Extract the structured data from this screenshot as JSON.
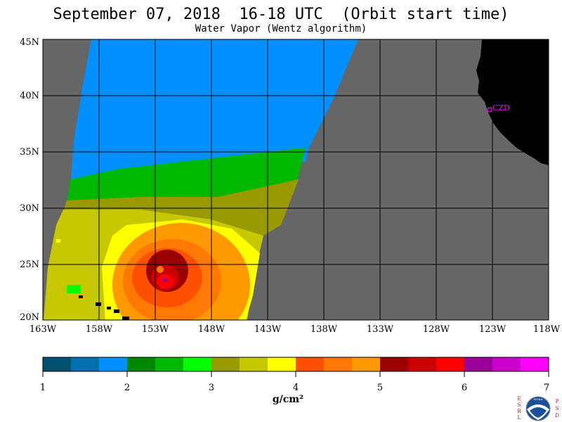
{
  "header": {
    "title": "September 07, 2018  16-18 UTC  (Orbit start time)",
    "subtitle": "Water Vapor (Wentz algorithm)"
  },
  "map": {
    "lat_labels": [
      "45N",
      "40N",
      "35N",
      "30N",
      "25N",
      "20N"
    ],
    "lon_labels": [
      "163W",
      "158W",
      "153W",
      "148W",
      "143W",
      "138W",
      "133W",
      "128W",
      "123W",
      "118W"
    ],
    "lat_range": [
      20,
      45
    ],
    "lon_range": [
      -163,
      -118
    ],
    "station_label": "CZD",
    "colors": {
      "no_data": "#666666",
      "land": "#000000",
      "grid": "#000000",
      "station": "#ff00ff"
    }
  },
  "colorbar": {
    "ticks": [
      "1",
      "2",
      "3",
      "4",
      "5",
      "6",
      "7"
    ],
    "unit": "g/cm²",
    "range": [
      1,
      7
    ],
    "colors": [
      "#005070",
      "#0070b0",
      "#0090ff",
      "#008800",
      "#00b800",
      "#00ff00",
      "#999900",
      "#c8c800",
      "#ffff00",
      "#ff5000",
      "#ff7800",
      "#ff9900",
      "#990000",
      "#cc0000",
      "#ff0000",
      "#990099",
      "#cc00cc",
      "#ff00ff"
    ]
  },
  "logo": {
    "left_letters": [
      "E",
      "S",
      "R",
      "L"
    ],
    "right_letters": [
      "P",
      "S",
      "D"
    ],
    "badge_text": "NOAA"
  }
}
